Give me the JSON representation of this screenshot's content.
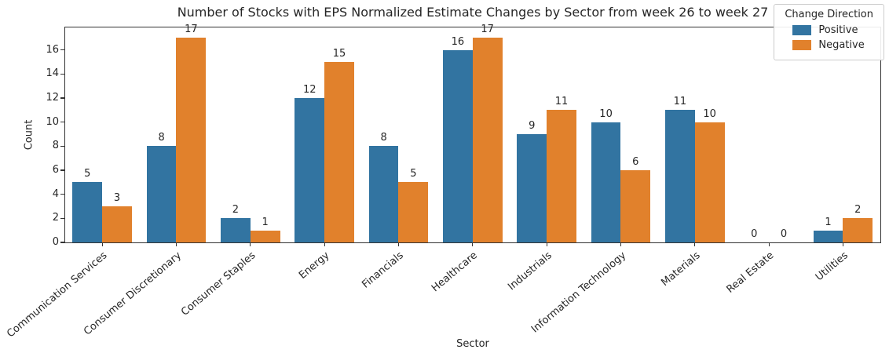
{
  "chart_data": {
    "type": "bar",
    "title": "Number of Stocks with EPS Normalized Estimate Changes by Sector from week 26 to week 27",
    "xlabel": "Sector",
    "ylabel": "Count",
    "categories": [
      "Communication Services",
      "Consumer Discretionary",
      "Consumer Staples",
      "Energy",
      "Financials",
      "Healthcare",
      "Industrials",
      "Information Technology",
      "Materials",
      "Real Estate",
      "Utilities"
    ],
    "series": [
      {
        "name": "Positive",
        "color": "#3274a1",
        "values": [
          5,
          8,
          2,
          12,
          8,
          16,
          9,
          10,
          11,
          0,
          1
        ]
      },
      {
        "name": "Negative",
        "color": "#e1812c",
        "values": [
          3,
          17,
          1,
          15,
          5,
          17,
          11,
          6,
          10,
          0,
          2
        ]
      }
    ],
    "ylim": [
      0,
      17.85
    ],
    "yticks": [
      0,
      2,
      4,
      6,
      8,
      10,
      12,
      14,
      16
    ],
    "legend_title": "Change Direction",
    "legend_position": "upper right",
    "grid": false,
    "bar_value_labels": true
  }
}
